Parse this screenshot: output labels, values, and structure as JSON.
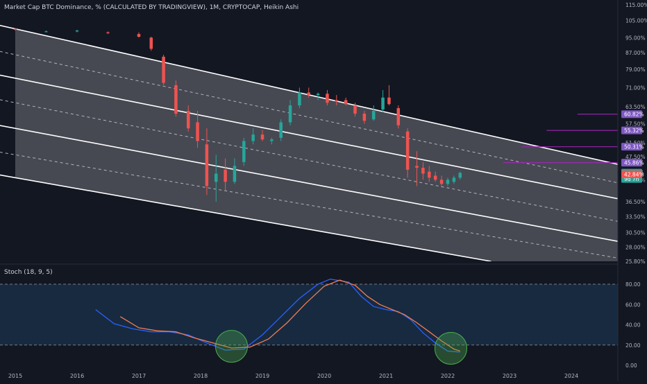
{
  "header": {
    "title": "Market Cap BTC Dominance, % (CALCULATED BY TRADINGVIEW), 1M, CRYPTOCAP, Heikin Ashi"
  },
  "colors": {
    "background": "#131722",
    "up": "#26a69a",
    "down": "#ef5350",
    "channel_line": "#ffffff",
    "channel_dashed": "#b2b5be",
    "level_line": "#9c27b0",
    "stoch_k": "#2962ff",
    "stoch_d": "#f57c51",
    "stoch_band": "#1a2e45",
    "highlight_circle": "#4caf50"
  },
  "price_axis": {
    "ticks": [
      "115.00%",
      "105.00%",
      "95.00%",
      "87.00%",
      "79.00%",
      "71.00%",
      "63.50%",
      "57.50%",
      "51.50%",
      "47.50%",
      "41.50%",
      "36.50%",
      "33.50%",
      "30.50%",
      "28.00%",
      "25.80%"
    ],
    "badges": [
      {
        "label": "60.82%",
        "color": "#7e57c2"
      },
      {
        "label": "55.32%",
        "color": "#7e57c2"
      },
      {
        "label": "50.31%",
        "color": "#7e57c2"
      },
      {
        "label": "45.86%",
        "color": "#7e57c2"
      },
      {
        "label": "43.24%",
        "color": "#26a69a"
      },
      {
        "label": "9d 7h",
        "color": "#26a69a"
      },
      {
        "label": "42.84%",
        "color": "#ef5350"
      }
    ]
  },
  "time_axis": {
    "labels": [
      "2015",
      "2016",
      "2017",
      "2018",
      "2019",
      "2020",
      "2021",
      "2022",
      "2023",
      "2024"
    ]
  },
  "chart_data": {
    "type": "candlestick",
    "subtype": "heikin-ashi",
    "x_unit": "year",
    "y_unit": "percent",
    "scale": "log",
    "ylim": [
      25.8,
      115
    ],
    "candles": [
      {
        "t": 2015.0,
        "o": 100.0,
        "h": 100.5,
        "l": 99.0,
        "c": 99.5
      },
      {
        "t": 2015.5,
        "o": 98.5,
        "h": 99.0,
        "l": 98.0,
        "c": 98.5
      },
      {
        "t": 2016.0,
        "o": 98.5,
        "h": 99.5,
        "l": 98.0,
        "c": 99.0
      },
      {
        "t": 2016.5,
        "o": 98.0,
        "h": 98.5,
        "l": 97.0,
        "c": 97.5
      },
      {
        "t": 2017.0,
        "o": 97.0,
        "h": 98.0,
        "l": 95.0,
        "c": 95.5
      },
      {
        "t": 2017.2,
        "o": 95.0,
        "h": 95.5,
        "l": 88.0,
        "c": 89.0
      },
      {
        "t": 2017.4,
        "o": 85.0,
        "h": 86.0,
        "l": 72.0,
        "c": 73.0
      },
      {
        "t": 2017.6,
        "o": 72.0,
        "h": 74.0,
        "l": 60.0,
        "c": 61.0
      },
      {
        "t": 2017.8,
        "o": 62.0,
        "h": 64.0,
        "l": 55.0,
        "c": 56.0
      },
      {
        "t": 2017.95,
        "o": 58.0,
        "h": 62.0,
        "l": 50.0,
        "c": 52.0
      },
      {
        "t": 2018.1,
        "o": 51.0,
        "h": 56.0,
        "l": 38.0,
        "c": 40.0
      },
      {
        "t": 2018.25,
        "o": 41.0,
        "h": 48.0,
        "l": 36.5,
        "c": 43.0
      },
      {
        "t": 2018.4,
        "o": 44.0,
        "h": 47.0,
        "l": 39.0,
        "c": 41.0
      },
      {
        "t": 2018.55,
        "o": 41.0,
        "h": 47.0,
        "l": 40.5,
        "c": 45.0
      },
      {
        "t": 2018.7,
        "o": 46.0,
        "h": 53.0,
        "l": 45.0,
        "c": 52.0
      },
      {
        "t": 2018.85,
        "o": 52.0,
        "h": 56.0,
        "l": 51.0,
        "c": 54.0
      },
      {
        "t": 2019.0,
        "o": 54.0,
        "h": 55.5,
        "l": 52.0,
        "c": 52.5
      },
      {
        "t": 2019.15,
        "o": 52.0,
        "h": 53.0,
        "l": 51.0,
        "c": 52.5
      },
      {
        "t": 2019.3,
        "o": 53.0,
        "h": 59.0,
        "l": 52.0,
        "c": 58.0
      },
      {
        "t": 2019.45,
        "o": 58.0,
        "h": 66.0,
        "l": 57.0,
        "c": 64.0
      },
      {
        "t": 2019.6,
        "o": 64.0,
        "h": 71.0,
        "l": 63.0,
        "c": 69.0
      },
      {
        "t": 2019.75,
        "o": 69.0,
        "h": 71.0,
        "l": 67.0,
        "c": 68.0
      },
      {
        "t": 2019.9,
        "o": 68.0,
        "h": 69.0,
        "l": 66.0,
        "c": 68.5
      },
      {
        "t": 2020.05,
        "o": 68.5,
        "h": 70.0,
        "l": 64.0,
        "c": 65.0
      },
      {
        "t": 2020.2,
        "o": 66.0,
        "h": 68.0,
        "l": 64.0,
        "c": 65.5
      },
      {
        "t": 2020.35,
        "o": 66.0,
        "h": 67.0,
        "l": 64.0,
        "c": 64.5
      },
      {
        "t": 2020.5,
        "o": 64.0,
        "h": 65.0,
        "l": 60.0,
        "c": 61.0
      },
      {
        "t": 2020.65,
        "o": 61.0,
        "h": 62.0,
        "l": 57.5,
        "c": 58.5
      },
      {
        "t": 2020.8,
        "o": 59.0,
        "h": 64.0,
        "l": 58.5,
        "c": 62.0
      },
      {
        "t": 2020.95,
        "o": 62.5,
        "h": 70.0,
        "l": 61.5,
        "c": 67.0
      },
      {
        "t": 2021.05,
        "o": 67.0,
        "h": 72.0,
        "l": 64.0,
        "c": 64.5
      },
      {
        "t": 2021.2,
        "o": 63.0,
        "h": 64.0,
        "l": 56.0,
        "c": 57.0
      },
      {
        "t": 2021.35,
        "o": 55.0,
        "h": 56.0,
        "l": 42.0,
        "c": 44.0
      },
      {
        "t": 2021.5,
        "o": 45.0,
        "h": 49.0,
        "l": 40.0,
        "c": 44.5
      },
      {
        "t": 2021.6,
        "o": 44.5,
        "h": 46.0,
        "l": 41.5,
        "c": 43.0
      },
      {
        "t": 2021.7,
        "o": 43.5,
        "h": 45.0,
        "l": 41.0,
        "c": 42.0
      },
      {
        "t": 2021.8,
        "o": 42.5,
        "h": 43.5,
        "l": 41.0,
        "c": 41.5
      },
      {
        "t": 2021.9,
        "o": 41.5,
        "h": 42.5,
        "l": 40.0,
        "c": 40.5
      },
      {
        "t": 2022.0,
        "o": 40.5,
        "h": 42.0,
        "l": 40.0,
        "c": 41.5
      },
      {
        "t": 2022.1,
        "o": 41.0,
        "h": 42.5,
        "l": 40.5,
        "c": 42.0
      },
      {
        "t": 2022.2,
        "o": 42.0,
        "h": 43.5,
        "l": 41.5,
        "c": 43.2
      }
    ],
    "channel_solid": [
      {
        "t0": 2015.0,
        "v0": 100,
        "t1": 2025.0,
        "v1": 44.5
      },
      {
        "t0": 2015.0,
        "v0": 75,
        "t1": 2025.0,
        "v1": 36.5
      },
      {
        "t0": 2015.0,
        "v0": 56,
        "t1": 2025.0,
        "v1": 28.5
      },
      {
        "t0": 2015.0,
        "v0": 42,
        "t1": 2022.7,
        "v1": 25.8
      }
    ],
    "channel_dashed": [
      {
        "t0": 2015.0,
        "v0": 86,
        "t1": 2025.0,
        "v1": 40.0
      },
      {
        "t0": 2015.0,
        "v0": 65,
        "t1": 2025.0,
        "v1": 32.0
      },
      {
        "t0": 2015.0,
        "v0": 48,
        "t1": 2025.0,
        "v1": 25.9
      }
    ],
    "levels": [
      {
        "value": 60.82,
        "start": 2024.1
      },
      {
        "value": 55.32,
        "start": 2023.6
      },
      {
        "value": 50.31,
        "start": 2023.2
      },
      {
        "value": 45.86,
        "start": 2022.9
      }
    ]
  },
  "stoch": {
    "title": "Stoch (18, 9, 5)",
    "ticks": [
      "80.00",
      "60.00",
      "40.00",
      "20.00",
      "0.00"
    ],
    "k": [
      [
        2016.3,
        55
      ],
      [
        2016.6,
        41
      ],
      [
        2016.9,
        36
      ],
      [
        2017.2,
        33
      ],
      [
        2017.5,
        33
      ],
      [
        2017.8,
        30
      ],
      [
        2018.1,
        22
      ],
      [
        2018.4,
        15
      ],
      [
        2018.7,
        16
      ],
      [
        2019.0,
        30
      ],
      [
        2019.3,
        48
      ],
      [
        2019.6,
        66
      ],
      [
        2019.9,
        80
      ],
      [
        2020.1,
        85
      ],
      [
        2020.4,
        82
      ],
      [
        2020.6,
        68
      ],
      [
        2020.8,
        58
      ],
      [
        2021.0,
        55
      ],
      [
        2021.2,
        53
      ],
      [
        2021.4,
        45
      ],
      [
        2021.6,
        32
      ],
      [
        2021.8,
        22
      ],
      [
        2022.0,
        14
      ],
      [
        2022.2,
        13
      ]
    ],
    "d": [
      [
        2016.7,
        48
      ],
      [
        2017.0,
        37
      ],
      [
        2017.3,
        34
      ],
      [
        2017.6,
        33
      ],
      [
        2017.9,
        27
      ],
      [
        2018.2,
        22
      ],
      [
        2018.5,
        17
      ],
      [
        2018.8,
        18
      ],
      [
        2019.1,
        26
      ],
      [
        2019.4,
        42
      ],
      [
        2019.7,
        61
      ],
      [
        2020.0,
        78
      ],
      [
        2020.25,
        84
      ],
      [
        2020.5,
        79
      ],
      [
        2020.7,
        68
      ],
      [
        2020.9,
        60
      ],
      [
        2021.1,
        55
      ],
      [
        2021.3,
        50
      ],
      [
        2021.5,
        42
      ],
      [
        2021.7,
        33
      ],
      [
        2021.9,
        24
      ],
      [
        2022.1,
        16
      ],
      [
        2022.2,
        14
      ]
    ],
    "highlights": [
      {
        "t": 2018.5,
        "value": 16
      },
      {
        "t": 2022.05,
        "value": 14
      }
    ]
  }
}
